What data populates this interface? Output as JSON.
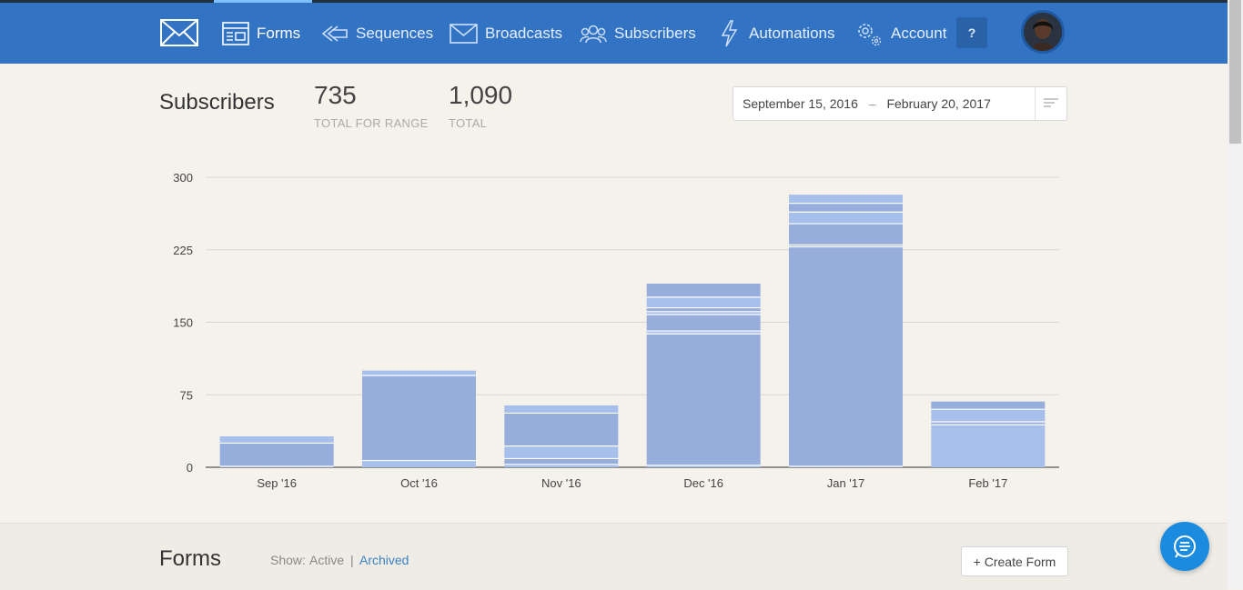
{
  "nav": {
    "items": [
      {
        "label": "Forms",
        "icon": "forms-icon",
        "active": true
      },
      {
        "label": "Sequences",
        "icon": "sequences-icon"
      },
      {
        "label": "Broadcasts",
        "icon": "broadcasts-icon"
      },
      {
        "label": "Subscribers",
        "icon": "subscribers-icon"
      },
      {
        "label": "Automations",
        "icon": "lightning-icon"
      },
      {
        "label": "Account",
        "icon": "gear-icon"
      }
    ],
    "help_label": "?",
    "accent": "#3373c4"
  },
  "stats": {
    "title": "Subscribers",
    "range_value": "735",
    "range_label": "TOTAL FOR RANGE",
    "total_value": "1,090",
    "total_label": "TOTAL"
  },
  "date_range": {
    "start": "September 15, 2016",
    "separator": "–",
    "end": "February 20, 2017"
  },
  "chart_data": {
    "type": "bar",
    "stacked": true,
    "categories": [
      "Sep '16",
      "Oct '16",
      "Nov '16",
      "Dec '16",
      "Jan '17",
      "Feb '17"
    ],
    "totals": [
      32,
      100,
      64,
      190,
      282,
      68
    ],
    "segments": [
      [
        1,
        24,
        7
      ],
      [
        7,
        88,
        5
      ],
      [
        3,
        6,
        13,
        34,
        8
      ],
      [
        2,
        136,
        3,
        17,
        3,
        4,
        11,
        14
      ],
      [
        1,
        227,
        2,
        22,
        12,
        9,
        9
      ],
      [
        44,
        3,
        13,
        8
      ]
    ],
    "yticks": [
      0,
      75,
      150,
      225,
      300
    ],
    "ylim": [
      0,
      300
    ],
    "grid": true,
    "colors": [
      "#a6bfeb",
      "#97aedd"
    ]
  },
  "forms": {
    "title": "Forms",
    "show_label": "Show:",
    "active_label": "Active",
    "separator": "|",
    "archived_label": "Archived",
    "create_label": "+ Create Form"
  }
}
